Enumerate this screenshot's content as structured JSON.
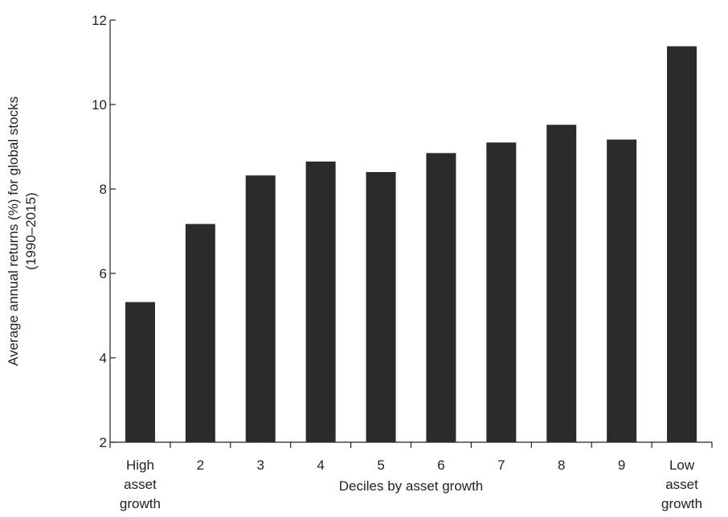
{
  "chart_data": {
    "type": "bar",
    "categories": [
      [
        "High",
        "asset",
        "growth"
      ],
      [
        "2"
      ],
      [
        "3"
      ],
      [
        "4"
      ],
      [
        "5"
      ],
      [
        "6"
      ],
      [
        "7"
      ],
      [
        "8"
      ],
      [
        "9"
      ],
      [
        "Low",
        "asset",
        "growth"
      ]
    ],
    "values": [
      5.32,
      7.17,
      8.32,
      8.65,
      8.4,
      8.85,
      9.1,
      9.52,
      9.17,
      11.38
    ],
    "title": "",
    "xlabel": "Deciles by asset growth",
    "ylabel": [
      "Average annual returns (%) for global stocks",
      "(1990–2015)"
    ],
    "ylim": [
      2,
      12
    ],
    "yticks": [
      "2",
      "4",
      "6",
      "8",
      "10",
      "12"
    ],
    "grid": false,
    "legend": "none",
    "colors": {
      "bar": "#2b2b2b",
      "axis": "#222222"
    }
  }
}
